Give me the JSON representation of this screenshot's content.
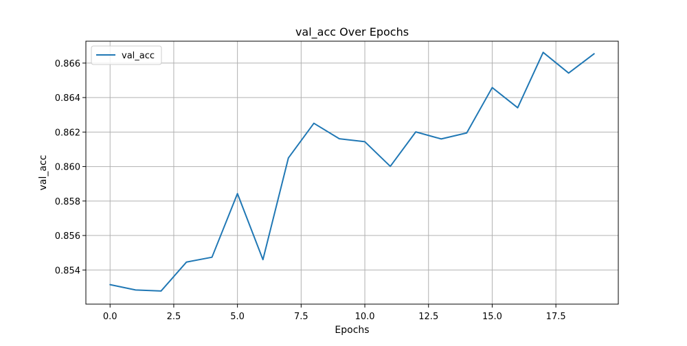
{
  "chart_data": {
    "type": "line",
    "title": "val_acc Over Epochs",
    "xlabel": "Epochs",
    "ylabel": "val_acc",
    "xlim": [
      -0.95,
      19.95
    ],
    "ylim": [
      0.85202,
      0.86727
    ],
    "xticks": [
      0.0,
      2.5,
      5.0,
      7.5,
      10.0,
      12.5,
      15.0,
      17.5
    ],
    "xtick_labels": [
      "0.0",
      "2.5",
      "5.0",
      "7.5",
      "10.0",
      "12.5",
      "15.0",
      "17.5"
    ],
    "yticks": [
      0.854,
      0.856,
      0.858,
      0.86,
      0.862,
      0.864,
      0.866
    ],
    "ytick_labels": [
      "0.854",
      "0.856",
      "0.858",
      "0.860",
      "0.862",
      "0.864",
      "0.866"
    ],
    "grid": true,
    "legend_position": "top-left",
    "series": [
      {
        "name": "val_acc",
        "color": "#1f77b4",
        "x": [
          0,
          1,
          2,
          3,
          4,
          5,
          6,
          7,
          8,
          9,
          10,
          11,
          12,
          13,
          14,
          15,
          16,
          17,
          18,
          19
        ],
        "y": [
          0.85315,
          0.85284,
          0.85278,
          0.85446,
          0.85474,
          0.85843,
          0.8546,
          0.8605,
          0.86251,
          0.86161,
          0.86144,
          0.86001,
          0.86201,
          0.8616,
          0.86195,
          0.86458,
          0.86341,
          0.86662,
          0.86542,
          0.86654
        ]
      }
    ]
  }
}
